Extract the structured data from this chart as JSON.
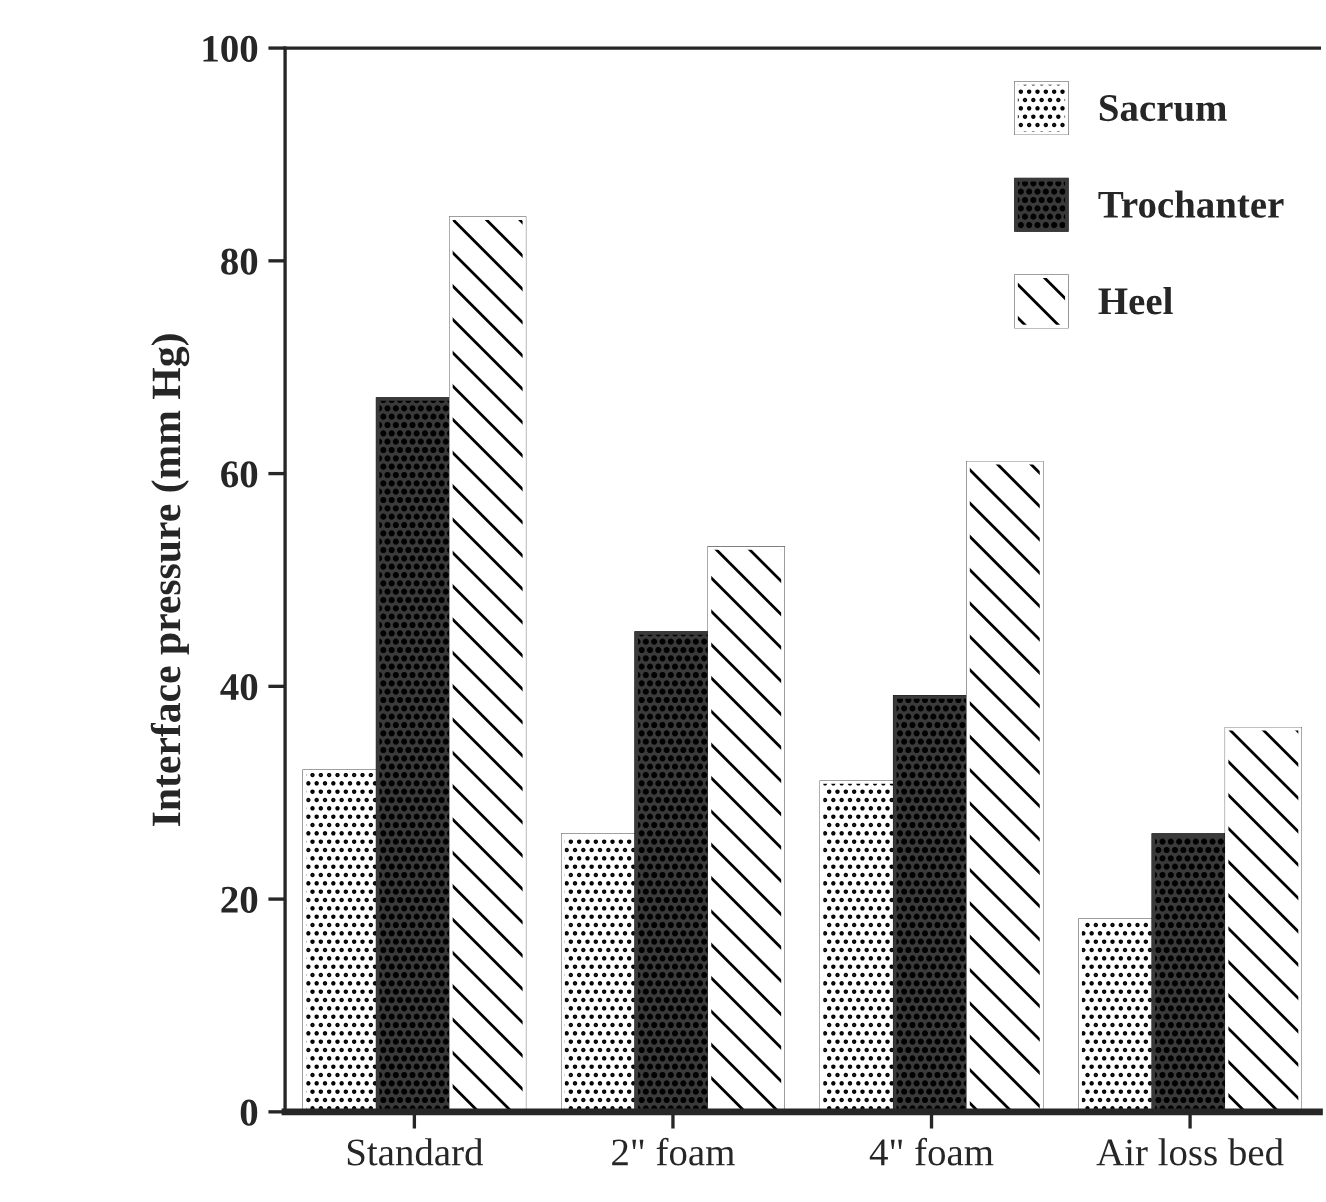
{
  "chart_data": {
    "type": "bar",
    "ylabel": "Interface pressure (mm Hg)",
    "categories": [
      "Standard",
      "2\" foam",
      "4\" foam",
      "Air loss bed"
    ],
    "series": [
      {
        "name": "Sacrum",
        "color": "#ffffff",
        "values": [
          32,
          26,
          31,
          18
        ]
      },
      {
        "name": "Trochanter",
        "color": "#3a3a3a",
        "values": [
          67,
          45,
          39,
          26
        ]
      },
      {
        "name": "Heel",
        "color": "#ffffff",
        "values": [
          84,
          53,
          61,
          36
        ]
      }
    ],
    "ylim": [
      0,
      100
    ],
    "yticks": [
      0,
      20,
      40,
      60,
      80,
      100
    ],
    "grid": false,
    "legend": "top right"
  }
}
